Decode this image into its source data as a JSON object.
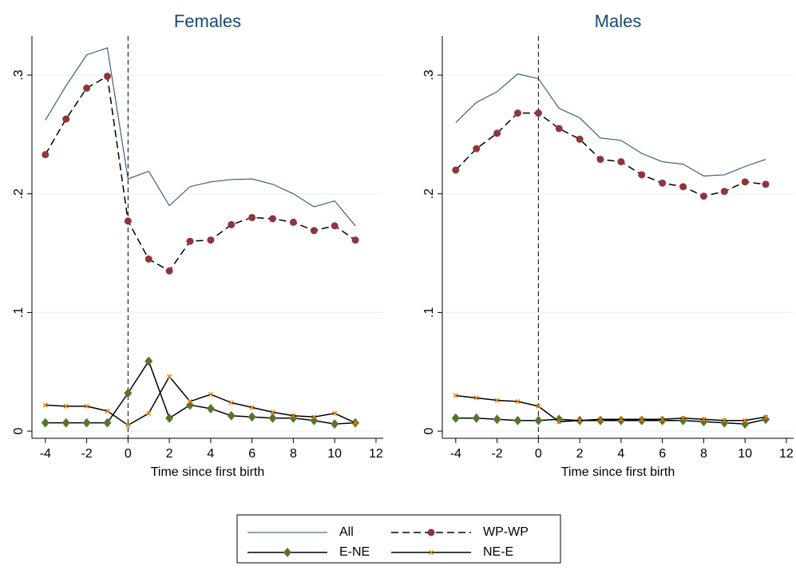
{
  "chart_data": [
    {
      "type": "line",
      "title": "Females",
      "xlabel": "Time since first birth",
      "x": [
        -4,
        -3,
        -2,
        -1,
        0,
        1,
        2,
        3,
        4,
        5,
        6,
        7,
        8,
        9,
        10,
        11
      ],
      "xlim": [
        -4.65,
        12.35
      ],
      "xticks": [
        -4,
        -2,
        0,
        2,
        4,
        6,
        8,
        10,
        12
      ],
      "ylim": [
        -0.006,
        0.333
      ],
      "yticks": [
        {
          "value": 0,
          "label": "0"
        },
        {
          "value": 0.1,
          "label": ".1"
        },
        {
          "value": 0.2,
          "label": ".2"
        },
        {
          "value": 0.3,
          "label": ".3"
        }
      ],
      "grid": true,
      "vline": 0,
      "series": [
        {
          "name": "All",
          "color": "#1a476f",
          "dash": false,
          "marker": null,
          "values": [
            0.262,
            0.291,
            0.317,
            0.323,
            0.2125,
            0.219,
            0.19,
            0.206,
            0.21,
            0.212,
            0.2125,
            0.208,
            0.2,
            0.189,
            0.194,
            0.173
          ]
        },
        {
          "name": "WP-WP",
          "color": "#000000",
          "dash": true,
          "marker": "circle",
          "marker_color": "#90353b",
          "values": [
            0.233,
            0.263,
            0.289,
            0.299,
            0.177,
            0.145,
            0.135,
            0.16,
            0.161,
            0.174,
            0.18,
            0.179,
            0.176,
            0.169,
            0.173,
            0.161
          ]
        },
        {
          "name": "E-NE",
          "color": "#000000",
          "dash": false,
          "marker": "diamond",
          "marker_color": "#55752f",
          "values": [
            0.007,
            0.007,
            0.007,
            0.007,
            0.032,
            0.059,
            0.011,
            0.022,
            0.019,
            0.013,
            0.012,
            0.011,
            0.011,
            0.009,
            0.006,
            0.007
          ]
        },
        {
          "name": "NE-E",
          "color": "#000000",
          "dash": false,
          "marker": "x",
          "marker_color": "#e37e00",
          "values": [
            0.022,
            0.021,
            0.021,
            0.017,
            0.005,
            0.015,
            0.046,
            0.025,
            0.031,
            0.024,
            0.02,
            0.016,
            0.013,
            0.012,
            0.015,
            0.007
          ]
        }
      ]
    },
    {
      "type": "line",
      "title": "Males",
      "xlabel": "Time since first birth",
      "x": [
        -4,
        -3,
        -2,
        -1,
        0,
        1,
        2,
        3,
        4,
        5,
        6,
        7,
        8,
        9,
        10,
        11
      ],
      "xlim": [
        -4.65,
        12.35
      ],
      "xticks": [
        -4,
        -2,
        0,
        2,
        4,
        6,
        8,
        10,
        12
      ],
      "ylim": [
        -0.006,
        0.333
      ],
      "yticks": [
        {
          "value": 0,
          "label": "0"
        },
        {
          "value": 0.1,
          "label": ".1"
        },
        {
          "value": 0.2,
          "label": ".2"
        },
        {
          "value": 0.3,
          "label": ".3"
        }
      ],
      "grid": true,
      "vline": 0,
      "series": [
        {
          "name": "All",
          "color": "#1a476f",
          "dash": false,
          "marker": null,
          "values": [
            0.26,
            0.277,
            0.286,
            0.301,
            0.297,
            0.272,
            0.264,
            0.247,
            0.245,
            0.234,
            0.227,
            0.225,
            0.215,
            0.216,
            0.223,
            0.229
          ]
        },
        {
          "name": "WP-WP",
          "color": "#000000",
          "dash": true,
          "marker": "circle",
          "marker_color": "#90353b",
          "values": [
            0.22,
            0.238,
            0.251,
            0.268,
            0.268,
            0.255,
            0.246,
            0.229,
            0.227,
            0.216,
            0.209,
            0.206,
            0.198,
            0.202,
            0.21,
            0.208
          ]
        },
        {
          "name": "E-NE",
          "color": "#000000",
          "dash": false,
          "marker": "diamond",
          "marker_color": "#55752f",
          "values": [
            0.011,
            0.011,
            0.01,
            0.009,
            0.009,
            0.01,
            0.009,
            0.009,
            0.009,
            0.009,
            0.009,
            0.009,
            0.008,
            0.007,
            0.006,
            0.01
          ]
        },
        {
          "name": "NE-E",
          "color": "#000000",
          "dash": false,
          "marker": "x",
          "marker_color": "#e37e00",
          "values": [
            0.03,
            0.028,
            0.026,
            0.025,
            0.021,
            0.008,
            0.009,
            0.01,
            0.01,
            0.01,
            0.01,
            0.011,
            0.01,
            0.009,
            0.009,
            0.012
          ]
        }
      ]
    }
  ]
}
